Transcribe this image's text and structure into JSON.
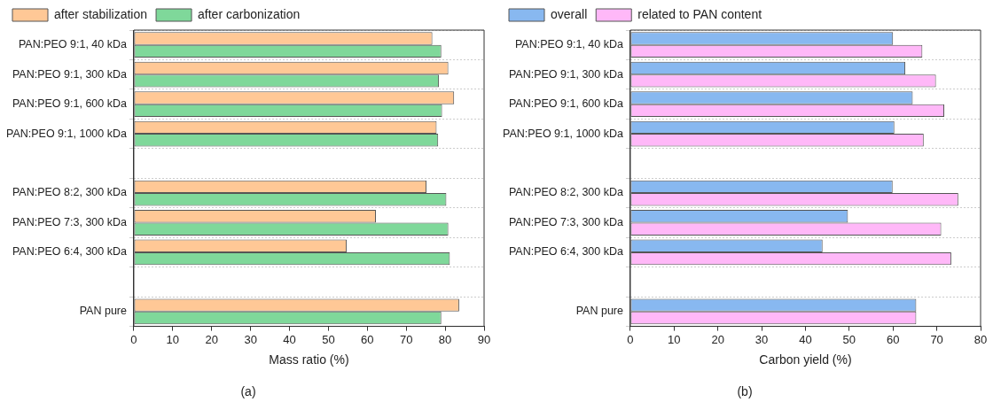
{
  "chart_data": [
    {
      "type": "bar",
      "orientation": "horizontal",
      "categories": [
        "PAN:PEO 9:1, 40 kDa",
        "PAN:PEO 9:1, 300 kDa",
        "PAN:PEO 9:1, 600 kDa",
        "PAN:PEO 9:1, 1000 kDa",
        null,
        "PAN:PEO 8:2, 300 kDa",
        "PAN:PEO 7:3, 300 kDa",
        "PAN:PEO 6:4, 300 kDa",
        null,
        "PAN pure"
      ],
      "series": [
        {
          "name": "after stabilization",
          "color": "#ffc896",
          "values": [
            76.7,
            80.8,
            82.3,
            77.8,
            null,
            75.2,
            62.2,
            54.7,
            null,
            83.6
          ]
        },
        {
          "name": "after carbonization",
          "color": "#7fd89a",
          "values": [
            79.0,
            78.4,
            79.2,
            78.2,
            null,
            80.3,
            80.8,
            81.2,
            null,
            79.0
          ]
        }
      ],
      "xlabel": "Mass ratio (%)",
      "xlim": [
        0,
        90
      ],
      "xticks": [
        0,
        10,
        20,
        30,
        40,
        50,
        60,
        70,
        80,
        90
      ],
      "grid": "y",
      "legend": "top left",
      "annotations": [
        "(a)"
      ]
    },
    {
      "type": "bar",
      "orientation": "horizontal",
      "categories": [
        "PAN:PEO 9:1, 40 kDa",
        "PAN:PEO 9:1, 300 kDa",
        "PAN:PEO 9:1, 600 kDa",
        "PAN:PEO 9:1, 1000 kDa",
        null,
        "PAN:PEO 8:2, 300 kDa",
        "PAN:PEO 7:3, 300 kDa",
        "PAN:PEO 6:4, 300 kDa",
        null,
        "PAN pure"
      ],
      "series": [
        {
          "name": "overall",
          "color": "#88b8f0",
          "values": [
            60.0,
            62.8,
            64.5,
            60.3,
            null,
            59.9,
            49.7,
            43.9,
            null,
            65.3
          ]
        },
        {
          "name": "related to PAN content",
          "color": "#ffb8f8",
          "values": [
            66.7,
            69.8,
            71.7,
            67.0,
            null,
            74.9,
            71.0,
            73.3,
            null,
            65.3
          ]
        }
      ],
      "xlabel": "Carbon yield (%)",
      "xlim": [
        0,
        80
      ],
      "xticks": [
        0,
        10,
        20,
        30,
        40,
        50,
        60,
        70,
        80
      ],
      "grid": "y",
      "legend": "top left",
      "annotations": [
        "(b)"
      ]
    }
  ]
}
